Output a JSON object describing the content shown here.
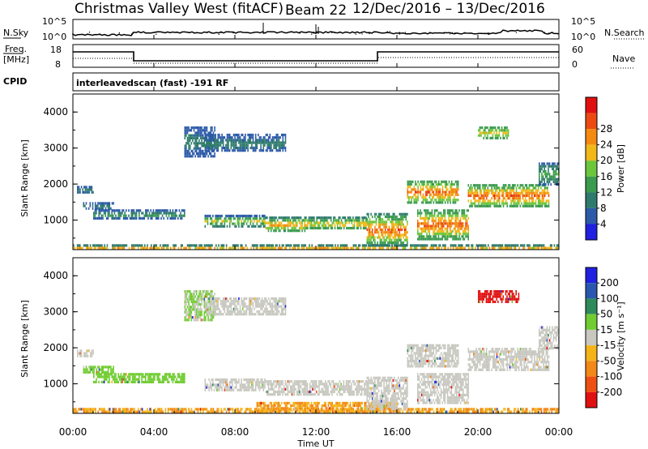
{
  "header": {
    "title": "Christmas Valley West (fitACF)",
    "beam": "Beam 22",
    "date_range": "12/Dec/2016 – 13/Dec/2016"
  },
  "noise_panel": {
    "left_label": "N.Sky",
    "right_label": "N.Search",
    "y_ticks": [
      "10^5",
      "10^0"
    ]
  },
  "freq_panel": {
    "left_label_line1": "Freq.",
    "left_label_line2": "[MHz]",
    "right_label": "Nave",
    "y_ticks_left": [
      "18",
      "8"
    ],
    "y_ticks_right": [
      "60",
      "0"
    ]
  },
  "cpid": {
    "label": "CPID",
    "program": "interleavedscan (fast) -191 RF"
  },
  "x_axis": {
    "label": "Time UT",
    "ticks": [
      "00:00",
      "04:00",
      "08:00",
      "12:00",
      "16:00",
      "20:00",
      "00:00"
    ]
  },
  "colors": {
    "power": [
      "#2020e0",
      "#2c5aa8",
      "#2e7a6c",
      "#3a9a4e",
      "#6cc63c",
      "#f0b818",
      "#f48a10",
      "#ec4a12",
      "#e01010"
    ],
    "velocity": [
      "#2020e0",
      "#2a56b0",
      "#2e8a5a",
      "#70cc30",
      "#c8c8c0",
      "#f4b418",
      "#f28818",
      "#ee5012",
      "#e01010"
    ]
  },
  "chart_data": [
    {
      "type": "heatmap",
      "name": "power",
      "ylabel": "Slant Range [km]",
      "ylim": [
        180,
        4500
      ],
      "xlim": [
        0,
        24
      ],
      "y_ticks": [
        1000,
        2000,
        3000,
        4000
      ],
      "colorbar": {
        "label": "Power [dB]",
        "ticks": [
          "4",
          "8",
          "12",
          "16",
          "20",
          "24",
          "28"
        ],
        "range": [
          0,
          30
        ]
      },
      "regions": [
        {
          "t0": 0.0,
          "t1": 24.0,
          "r0": 190,
          "r1": 330,
          "v0": 8,
          "v1": 22
        },
        {
          "t0": 0.2,
          "t1": 1.0,
          "r0": 1750,
          "r1": 1950,
          "v0": 4,
          "v1": 10
        },
        {
          "t0": 0.5,
          "t1": 2.0,
          "r0": 1300,
          "r1": 1500,
          "v0": 4,
          "v1": 10
        },
        {
          "t0": 1.0,
          "t1": 5.5,
          "r0": 1050,
          "r1": 1300,
          "v0": 4,
          "v1": 14
        },
        {
          "t0": 5.5,
          "t1": 7.0,
          "r0": 2800,
          "r1": 3600,
          "v0": 4,
          "v1": 10
        },
        {
          "t0": 6.5,
          "t1": 10.5,
          "r0": 2900,
          "r1": 3400,
          "v0": 4,
          "v1": 10
        },
        {
          "t0": 6.5,
          "t1": 9.5,
          "r0": 850,
          "r1": 1150,
          "v0": 6,
          "v1": 20
        },
        {
          "t0": 9.5,
          "t1": 11.5,
          "r0": 700,
          "r1": 1100,
          "v0": 8,
          "v1": 24
        },
        {
          "t0": 11.5,
          "t1": 14.5,
          "r0": 750,
          "r1": 1100,
          "v0": 8,
          "v1": 22
        },
        {
          "t0": 14.5,
          "t1": 16.5,
          "r0": 300,
          "r1": 1200,
          "v0": 8,
          "v1": 28
        },
        {
          "t0": 16.5,
          "t1": 19.0,
          "r0": 1500,
          "r1": 2100,
          "v0": 10,
          "v1": 28
        },
        {
          "t0": 17.0,
          "t1": 19.5,
          "r0": 500,
          "r1": 1300,
          "v0": 10,
          "v1": 28
        },
        {
          "t0": 19.5,
          "t1": 23.5,
          "r0": 1400,
          "r1": 2000,
          "v0": 10,
          "v1": 28
        },
        {
          "t0": 20.0,
          "t1": 21.5,
          "r0": 3300,
          "r1": 3600,
          "v0": 10,
          "v1": 20
        },
        {
          "t0": 23.0,
          "t1": 24.0,
          "r0": 2000,
          "r1": 2600,
          "v0": 6,
          "v1": 14
        }
      ]
    },
    {
      "type": "heatmap",
      "name": "velocity",
      "ylabel": "Slant Range [km]",
      "ylim": [
        180,
        4500
      ],
      "xlim": [
        0,
        24
      ],
      "y_ticks": [
        1000,
        2000,
        3000,
        4000
      ],
      "colorbar": {
        "label": "Velocity [m s⁻¹]",
        "ticks": [
          "200",
          "100",
          "50",
          "15",
          "-15",
          "-50",
          "-100",
          "-200"
        ]
      },
      "regions": [
        {
          "t0": 0.0,
          "t1": 24.0,
          "r0": 190,
          "r1": 330,
          "v0": 5,
          "v1": 6
        },
        {
          "t0": 0.2,
          "t1": 1.0,
          "r0": 1750,
          "r1": 1950,
          "v0": 4,
          "v1": 4
        },
        {
          "t0": 0.5,
          "t1": 2.0,
          "r0": 1300,
          "r1": 1500,
          "v0": 3,
          "v1": 3
        },
        {
          "t0": 1.0,
          "t1": 5.5,
          "r0": 1050,
          "r1": 1300,
          "v0": 3,
          "v1": 3
        },
        {
          "t0": 5.5,
          "t1": 7.0,
          "r0": 2800,
          "r1": 3600,
          "v0": 3,
          "v1": 4
        },
        {
          "t0": 6.5,
          "t1": 10.5,
          "r0": 2900,
          "r1": 3400,
          "v0": 4,
          "v1": 4
        },
        {
          "t0": 6.5,
          "t1": 9.5,
          "r0": 850,
          "r1": 1150,
          "v0": 4,
          "v1": 4
        },
        {
          "t0": 9.5,
          "t1": 14.5,
          "r0": 700,
          "r1": 1100,
          "v0": 4,
          "v1": 4
        },
        {
          "t0": 9.0,
          "t1": 16.0,
          "r0": 220,
          "r1": 500,
          "v0": 5,
          "v1": 6
        },
        {
          "t0": 14.5,
          "t1": 16.5,
          "r0": 300,
          "r1": 1200,
          "v0": 4,
          "v1": 4
        },
        {
          "t0": 16.5,
          "t1": 19.0,
          "r0": 1500,
          "r1": 2100,
          "v0": 4,
          "v1": 4
        },
        {
          "t0": 17.0,
          "t1": 19.5,
          "r0": 500,
          "r1": 1300,
          "v0": 4,
          "v1": 4
        },
        {
          "t0": 19.5,
          "t1": 23.5,
          "r0": 1400,
          "r1": 2000,
          "v0": 4,
          "v1": 4
        },
        {
          "t0": 20.0,
          "t1": 22.0,
          "r0": 3300,
          "r1": 3600,
          "v0": 8,
          "v1": 8
        },
        {
          "t0": 23.0,
          "t1": 24.0,
          "r0": 2000,
          "r1": 2600,
          "v0": 4,
          "v1": 4
        }
      ]
    }
  ]
}
